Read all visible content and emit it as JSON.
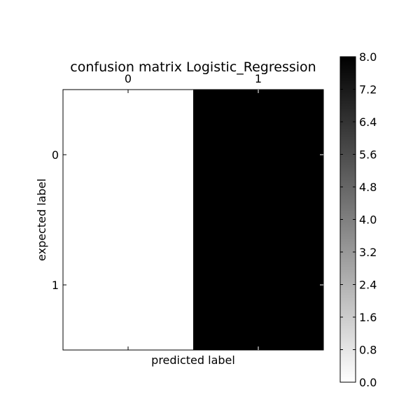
{
  "chart_data": {
    "type": "heatmap",
    "title": "confusion matrix Logistic_Regression",
    "xlabel": "predicted label",
    "ylabel": "expected label",
    "x_categories": [
      "0",
      "1"
    ],
    "y_categories": [
      "0",
      "1"
    ],
    "matrix": [
      [
        0,
        8
      ],
      [
        0,
        8
      ]
    ],
    "colormap": "grays (white = 0.0, black = 8.0)",
    "colorbar": {
      "range": [
        0.0,
        8.0
      ],
      "ticks": [
        "0.0",
        "0.8",
        "1.6",
        "2.4",
        "3.2",
        "4.0",
        "4.8",
        "5.6",
        "6.4",
        "7.2",
        "8.0"
      ]
    },
    "grid": false,
    "colors": {
      "low": "#ffffff",
      "high": "#000000"
    }
  }
}
